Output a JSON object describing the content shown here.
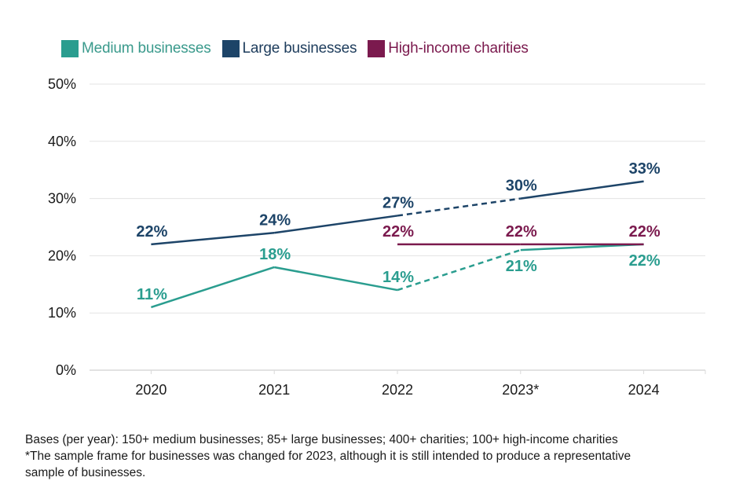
{
  "chart_data": {
    "type": "line",
    "title": "",
    "xlabel": "",
    "ylabel": "",
    "categories": [
      "2020",
      "2021",
      "2022",
      "2023*",
      "2024"
    ],
    "ylim": [
      0,
      50
    ],
    "yticks": [
      0,
      10,
      20,
      30,
      40,
      50
    ],
    "ytick_labels": [
      "0%",
      "10%",
      "20%",
      "30%",
      "40%",
      "50%"
    ],
    "grid": true,
    "legend_position": "top-left",
    "series": [
      {
        "name": "Medium businesses",
        "color": "#2a9d8f",
        "values": [
          11,
          18,
          14,
          21,
          22
        ],
        "labels": [
          "11%",
          "18%",
          "14%",
          "21%",
          "22%"
        ],
        "label_positions": [
          "above",
          "above",
          "above",
          "below",
          "below"
        ],
        "dashed_segments": [
          [
            2,
            3
          ]
        ]
      },
      {
        "name": "Large businesses",
        "color": "#1d4468",
        "values": [
          22,
          24,
          27,
          30,
          33
        ],
        "labels": [
          "22%",
          "24%",
          "27%",
          "30%",
          "33%"
        ],
        "label_positions": [
          "above",
          "above",
          "above",
          "above",
          "above"
        ],
        "dashed_segments": [
          [
            2,
            3
          ]
        ]
      },
      {
        "name": "High-income charities",
        "color": "#7b1a4e",
        "values": [
          null,
          null,
          22,
          22,
          22
        ],
        "labels": [
          null,
          null,
          "22%",
          "22%",
          "22%"
        ],
        "label_positions": [
          null,
          null,
          "above",
          "above",
          "above"
        ],
        "dashed_segments": []
      }
    ]
  },
  "legend": [
    {
      "label": "Medium businesses",
      "color": "#2a9d8f",
      "text_color": "#3a9a8c"
    },
    {
      "label": "Large businesses",
      "color": "#1d4468",
      "text_color": "#1d3c5c"
    },
    {
      "label": "High-income charities",
      "color": "#7b1a4e",
      "text_color": "#7b1a4e"
    }
  ],
  "notes": [
    "Bases (per year): 150+ medium businesses; 85+ large businesses; 400+ charities; 100+ high-income charities",
    "*The sample frame for businesses was changed for 2023, although it is still intended to produce a representative",
    "sample of businesses."
  ]
}
